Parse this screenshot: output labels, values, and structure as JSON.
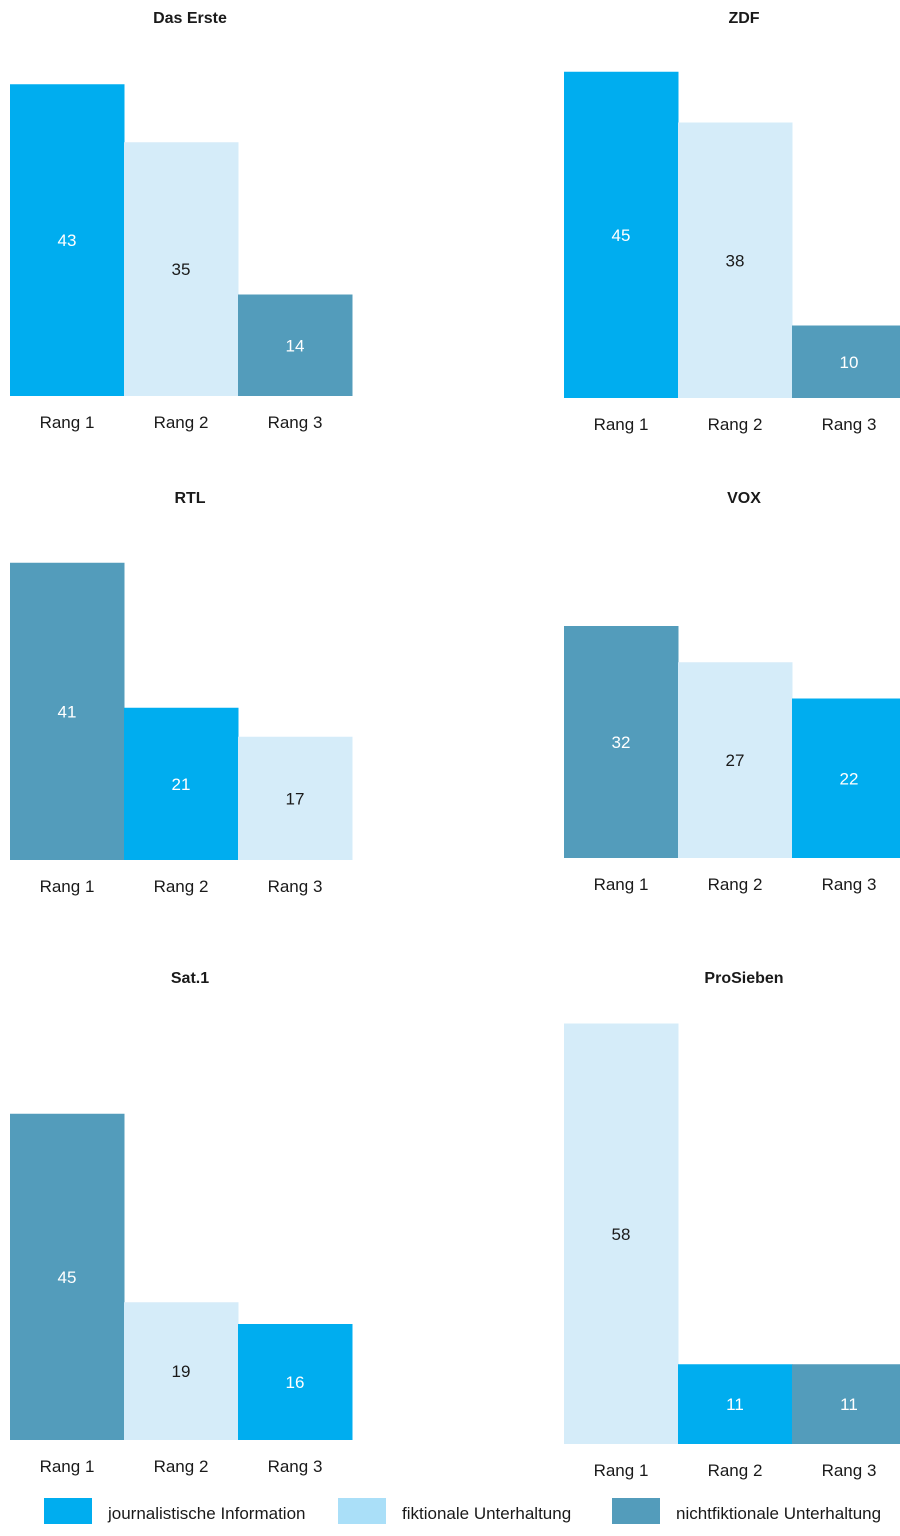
{
  "chart_data": [
    {
      "type": "bar",
      "title": "Das Erste",
      "categories": [
        "Rang 1",
        "Rang 2",
        "Rang 3"
      ],
      "values": [
        43,
        35,
        14
      ],
      "series_keys": [
        "info",
        "fiktional",
        "nichtfiktional"
      ]
    },
    {
      "type": "bar",
      "title": "ZDF",
      "categories": [
        "Rang 1",
        "Rang 2",
        "Rang 3"
      ],
      "values": [
        45,
        38,
        10
      ],
      "series_keys": [
        "info",
        "fiktional",
        "nichtfiktional"
      ]
    },
    {
      "type": "bar",
      "title": "RTL",
      "categories": [
        "Rang 1",
        "Rang 2",
        "Rang 3"
      ],
      "values": [
        41,
        21,
        17
      ],
      "series_keys": [
        "nichtfiktional",
        "info",
        "fiktional"
      ]
    },
    {
      "type": "bar",
      "title": "VOX",
      "categories": [
        "Rang 1",
        "Rang 2",
        "Rang 3"
      ],
      "values": [
        32,
        27,
        22
      ],
      "series_keys": [
        "nichtfiktional",
        "fiktional",
        "info"
      ]
    },
    {
      "type": "bar",
      "title": "Sat.1",
      "categories": [
        "Rang 1",
        "Rang 2",
        "Rang 3"
      ],
      "values": [
        45,
        19,
        16
      ],
      "series_keys": [
        "nichtfiktional",
        "fiktional",
        "info"
      ]
    },
    {
      "type": "bar",
      "title": "ProSieben",
      "categories": [
        "Rang 1",
        "Rang 2",
        "Rang 3"
      ],
      "values": [
        58,
        11,
        11
      ],
      "series_keys": [
        "fiktional",
        "info",
        "nichtfiktional"
      ]
    }
  ],
  "legend": {
    "items": [
      {
        "key": "info",
        "label": "journalistische Information",
        "color": "#00adef",
        "text_color": "#ffffff"
      },
      {
        "key": "fiktional",
        "label": "fiktionale Unterhaltung",
        "color": "#d5ecf9",
        "text_color": "#1a1a1a"
      },
      {
        "key": "nichtfiktional",
        "label": "nichtfiktionale Unterhaltung",
        "color": "#539cbb",
        "text_color": "#ffffff"
      }
    ],
    "swatch_colors": [
      "#00adef",
      "#aadff8",
      "#539cbb"
    ]
  }
}
